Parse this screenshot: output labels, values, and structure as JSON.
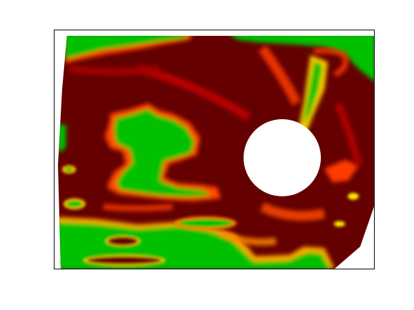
{
  "chart_data": {
    "type": "heatmap",
    "title": "",
    "xlabel": "",
    "ylabel": "",
    "ticks": "none",
    "legend": "none",
    "frame": true,
    "colormap": {
      "name": "green-yellow-red-darkred",
      "stops": [
        "#00c000",
        "#ffee00",
        "#ff2a00",
        "#650000"
      ]
    },
    "mask": {
      "shape": "circle",
      "fill": "#ffffff"
    },
    "colors": {
      "background": "#ffffff",
      "frame": "#000000"
    }
  }
}
